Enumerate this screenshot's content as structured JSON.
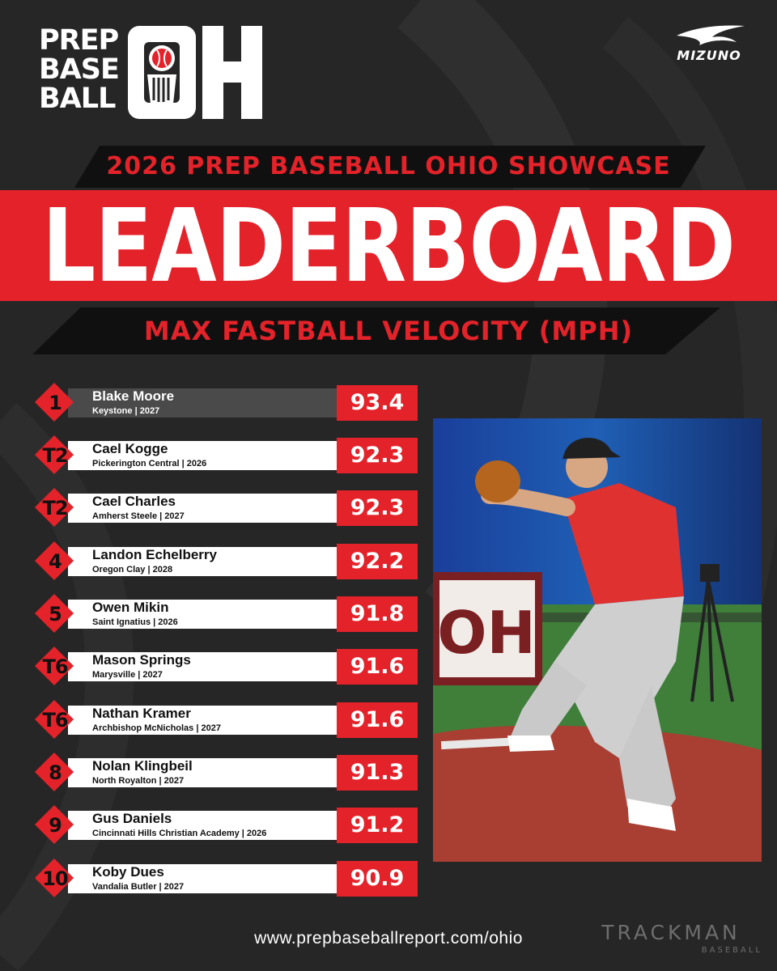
{
  "brand": {
    "logo_words": [
      "PREP",
      "BASE",
      "BALL"
    ],
    "logo_letters": "OH",
    "sponsor": "MIZUNO"
  },
  "header": {
    "event": "2026 PREP BASEBALL OHIO SHOWCASE",
    "title": "LEADERBOARD",
    "subtitle": "MAX FASTBALL VELOCITY (MPH)"
  },
  "leaderboard": [
    {
      "rank": "1",
      "name": "Blake Moore",
      "detail": "Keystone | 2027",
      "value": "93.4"
    },
    {
      "rank": "T2",
      "name": "Cael Kogge",
      "detail": "Pickerington Central | 2026",
      "value": "92.3"
    },
    {
      "rank": "T2",
      "name": "Cael Charles",
      "detail": "Amherst Steele | 2027",
      "value": "92.3"
    },
    {
      "rank": "4",
      "name": "Landon Echelberry",
      "detail": "Oregon Clay | 2028",
      "value": "92.2"
    },
    {
      "rank": "5",
      "name": "Owen Mikin",
      "detail": "Saint Ignatius | 2026",
      "value": "91.8"
    },
    {
      "rank": "T6",
      "name": "Mason Springs",
      "detail": "Marysville | 2027",
      "value": "91.6"
    },
    {
      "rank": "T6",
      "name": "Nathan Kramer",
      "detail": "Archbishop McNicholas | 2027",
      "value": "91.6"
    },
    {
      "rank": "8",
      "name": "Nolan Klingbeil",
      "detail": "North Royalton | 2027",
      "value": "91.3"
    },
    {
      "rank": "9",
      "name": "Gus Daniels",
      "detail": "Cincinnati Hills Christian Academy | 2026",
      "value": "91.2"
    },
    {
      "rank": "10",
      "name": "Koby Dues",
      "detail": "Vandalia Butler | 2027",
      "value": "90.9"
    }
  ],
  "photo": {
    "banner_letters": "OH"
  },
  "footer": {
    "url": "www.prepbaseballreport.com/ohio",
    "partner": "TRACKMAN",
    "partner_sub": "BASEBALL"
  },
  "colors": {
    "accent": "#e4222a",
    "background": "#262626",
    "banner": "#101010"
  }
}
